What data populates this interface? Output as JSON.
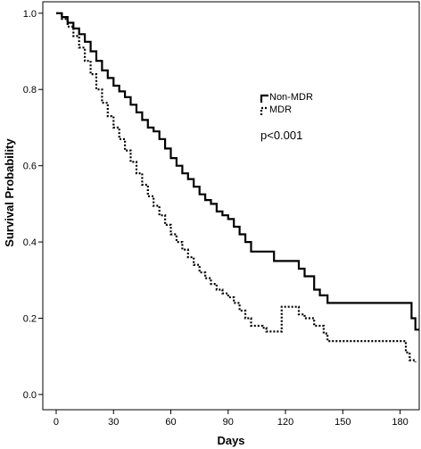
{
  "chart_data": {
    "type": "line",
    "step": true,
    "xlabel": "Days",
    "ylabel": "Survival Probability",
    "xlim": [
      -7,
      190
    ],
    "ylim": [
      -0.04,
      1.03
    ],
    "xticks": [
      0,
      30,
      60,
      90,
      120,
      150,
      180
    ],
    "yticks": [
      0.0,
      0.2,
      0.4,
      0.6,
      0.8,
      1.0
    ],
    "xtick_labels": [
      "0",
      "30",
      "60",
      "90",
      "120",
      "150",
      "180"
    ],
    "ytick_labels": [
      "0.0",
      "0.2",
      "0.4",
      "0.6",
      "0.8",
      "1.0"
    ],
    "grid": false,
    "legend_position": "upper-right inside plot",
    "annotation": "p<0.001",
    "series": [
      {
        "name": "Non-MDR",
        "style": "solid",
        "color": "#000000",
        "points": [
          [
            0,
            1.0
          ],
          [
            3,
            0.99
          ],
          [
            6,
            0.975
          ],
          [
            9,
            0.96
          ],
          [
            12,
            0.945
          ],
          [
            15,
            0.925
          ],
          [
            18,
            0.9
          ],
          [
            21,
            0.875
          ],
          [
            24,
            0.85
          ],
          [
            27,
            0.83
          ],
          [
            30,
            0.81
          ],
          [
            33,
            0.795
          ],
          [
            36,
            0.78
          ],
          [
            39,
            0.76
          ],
          [
            42,
            0.74
          ],
          [
            45,
            0.72
          ],
          [
            48,
            0.7
          ],
          [
            51,
            0.69
          ],
          [
            54,
            0.67
          ],
          [
            57,
            0.645
          ],
          [
            60,
            0.62
          ],
          [
            63,
            0.6
          ],
          [
            66,
            0.58
          ],
          [
            69,
            0.565
          ],
          [
            72,
            0.545
          ],
          [
            75,
            0.525
          ],
          [
            78,
            0.51
          ],
          [
            81,
            0.5
          ],
          [
            84,
            0.48
          ],
          [
            87,
            0.47
          ],
          [
            90,
            0.46
          ],
          [
            93,
            0.44
          ],
          [
            96,
            0.42
          ],
          [
            99,
            0.4
          ],
          [
            102,
            0.375
          ],
          [
            108,
            0.375
          ],
          [
            110,
            0.375
          ],
          [
            114,
            0.35
          ],
          [
            125,
            0.35
          ],
          [
            127,
            0.33
          ],
          [
            130,
            0.31
          ],
          [
            135,
            0.275
          ],
          [
            138,
            0.26
          ],
          [
            140,
            0.26
          ],
          [
            142,
            0.24
          ],
          [
            185,
            0.24
          ],
          [
            186,
            0.2
          ],
          [
            188,
            0.17
          ],
          [
            190,
            0.17
          ]
        ]
      },
      {
        "name": "MDR",
        "style": "dotted",
        "color": "#000000",
        "points": [
          [
            0,
            1.0
          ],
          [
            3,
            0.985
          ],
          [
            6,
            0.965
          ],
          [
            9,
            0.94
          ],
          [
            12,
            0.91
          ],
          [
            15,
            0.875
          ],
          [
            18,
            0.84
          ],
          [
            21,
            0.8
          ],
          [
            24,
            0.765
          ],
          [
            27,
            0.73
          ],
          [
            30,
            0.7
          ],
          [
            33,
            0.67
          ],
          [
            36,
            0.64
          ],
          [
            39,
            0.61
          ],
          [
            42,
            0.58
          ],
          [
            45,
            0.55
          ],
          [
            48,
            0.52
          ],
          [
            51,
            0.495
          ],
          [
            54,
            0.47
          ],
          [
            57,
            0.445
          ],
          [
            60,
            0.42
          ],
          [
            63,
            0.4
          ],
          [
            66,
            0.38
          ],
          [
            69,
            0.36
          ],
          [
            72,
            0.34
          ],
          [
            75,
            0.32
          ],
          [
            78,
            0.305
          ],
          [
            81,
            0.29
          ],
          [
            84,
            0.275
          ],
          [
            87,
            0.265
          ],
          [
            90,
            0.255
          ],
          [
            93,
            0.24
          ],
          [
            96,
            0.22
          ],
          [
            99,
            0.2
          ],
          [
            102,
            0.18
          ],
          [
            108,
            0.175
          ],
          [
            110,
            0.165
          ],
          [
            114,
            0.165
          ],
          [
            118,
            0.23
          ],
          [
            125,
            0.23
          ],
          [
            127,
            0.21
          ],
          [
            130,
            0.2
          ],
          [
            135,
            0.18
          ],
          [
            140,
            0.16
          ],
          [
            142,
            0.14
          ],
          [
            145,
            0.14
          ],
          [
            148,
            0.14
          ],
          [
            180,
            0.14
          ],
          [
            183,
            0.11
          ],
          [
            185,
            0.09
          ],
          [
            188,
            0.085
          ]
        ]
      }
    ]
  }
}
